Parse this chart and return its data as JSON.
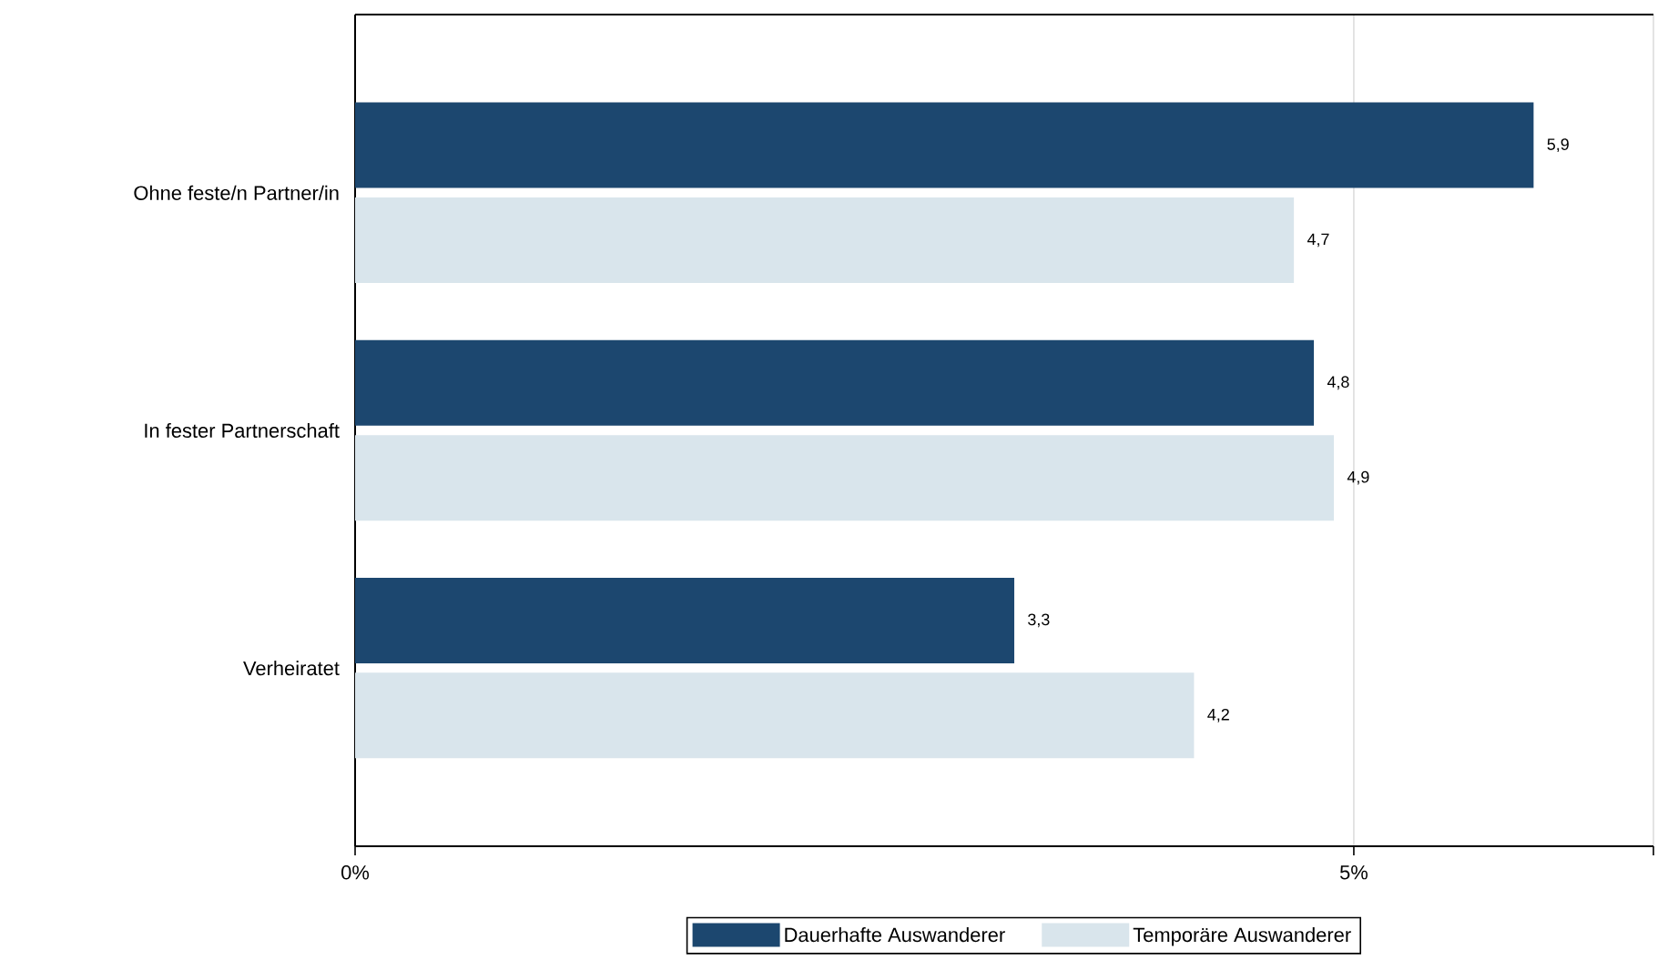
{
  "chart_data": {
    "type": "bar",
    "orientation": "horizontal",
    "categories": [
      "Ohne feste/n Partner/in",
      "In fester Partnerschaft",
      "Verheiratet"
    ],
    "series": [
      {
        "name": "Dauerhafte Auswanderer",
        "color": "#1c476f",
        "values": [
          5.9,
          4.8,
          3.3
        ],
        "value_labels": [
          "5,9",
          "4,8",
          "3,3"
        ]
      },
      {
        "name": "Temporäre Auswanderer",
        "color": "#d9e5ec",
        "values": [
          4.7,
          4.9,
          4.2
        ],
        "value_labels": [
          "4,7",
          "4,9",
          "4,2"
        ]
      }
    ],
    "xlim": [
      0,
      6.5
    ],
    "xticks": [
      {
        "value": 0,
        "label": "0%"
      },
      {
        "value": 5,
        "label": "5%"
      },
      {
        "value": 6.5,
        "label": null
      }
    ],
    "grid": "x",
    "legend": "bottom"
  }
}
